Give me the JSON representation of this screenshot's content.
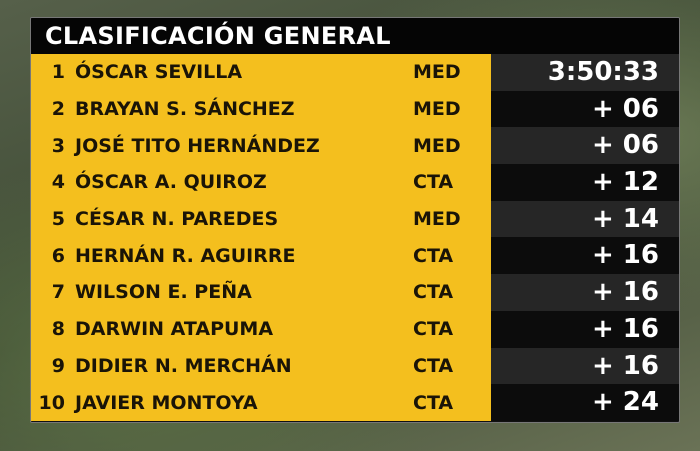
{
  "title": "CLASIFICACIÓN GENERAL",
  "colors": {
    "row_bg": "#f4bf1e",
    "time_bg": "#111111",
    "header_bg": "#050505"
  },
  "rows": [
    {
      "pos": "1",
      "name": "ÓSCAR SEVILLA",
      "team": "MED",
      "time": "3:50:33"
    },
    {
      "pos": "2",
      "name": "BRAYAN S. SÁNCHEZ",
      "team": "MED",
      "time": "+ 06"
    },
    {
      "pos": "3",
      "name": "JOSÉ TITO HERNÁNDEZ",
      "team": "MED",
      "time": "+ 06"
    },
    {
      "pos": "4",
      "name": "ÓSCAR A. QUIROZ",
      "team": "CTA",
      "time": "+ 12"
    },
    {
      "pos": "5",
      "name": "CÉSAR N. PAREDES",
      "team": "MED",
      "time": "+ 14"
    },
    {
      "pos": "6",
      "name": "HERNÁN R. AGUIRRE",
      "team": "CTA",
      "time": "+ 16"
    },
    {
      "pos": "7",
      "name": "WILSON E. PEÑA",
      "team": "CTA",
      "time": "+ 16"
    },
    {
      "pos": "8",
      "name": "DARWIN ATAPUMA",
      "team": "CTA",
      "time": "+ 16"
    },
    {
      "pos": "9",
      "name": "DIDIER N. MERCHÁN",
      "team": "CTA",
      "time": "+ 16"
    },
    {
      "pos": "10",
      "name": "JAVIER MONTOYA",
      "team": "CTA",
      "time": "+ 24"
    }
  ]
}
